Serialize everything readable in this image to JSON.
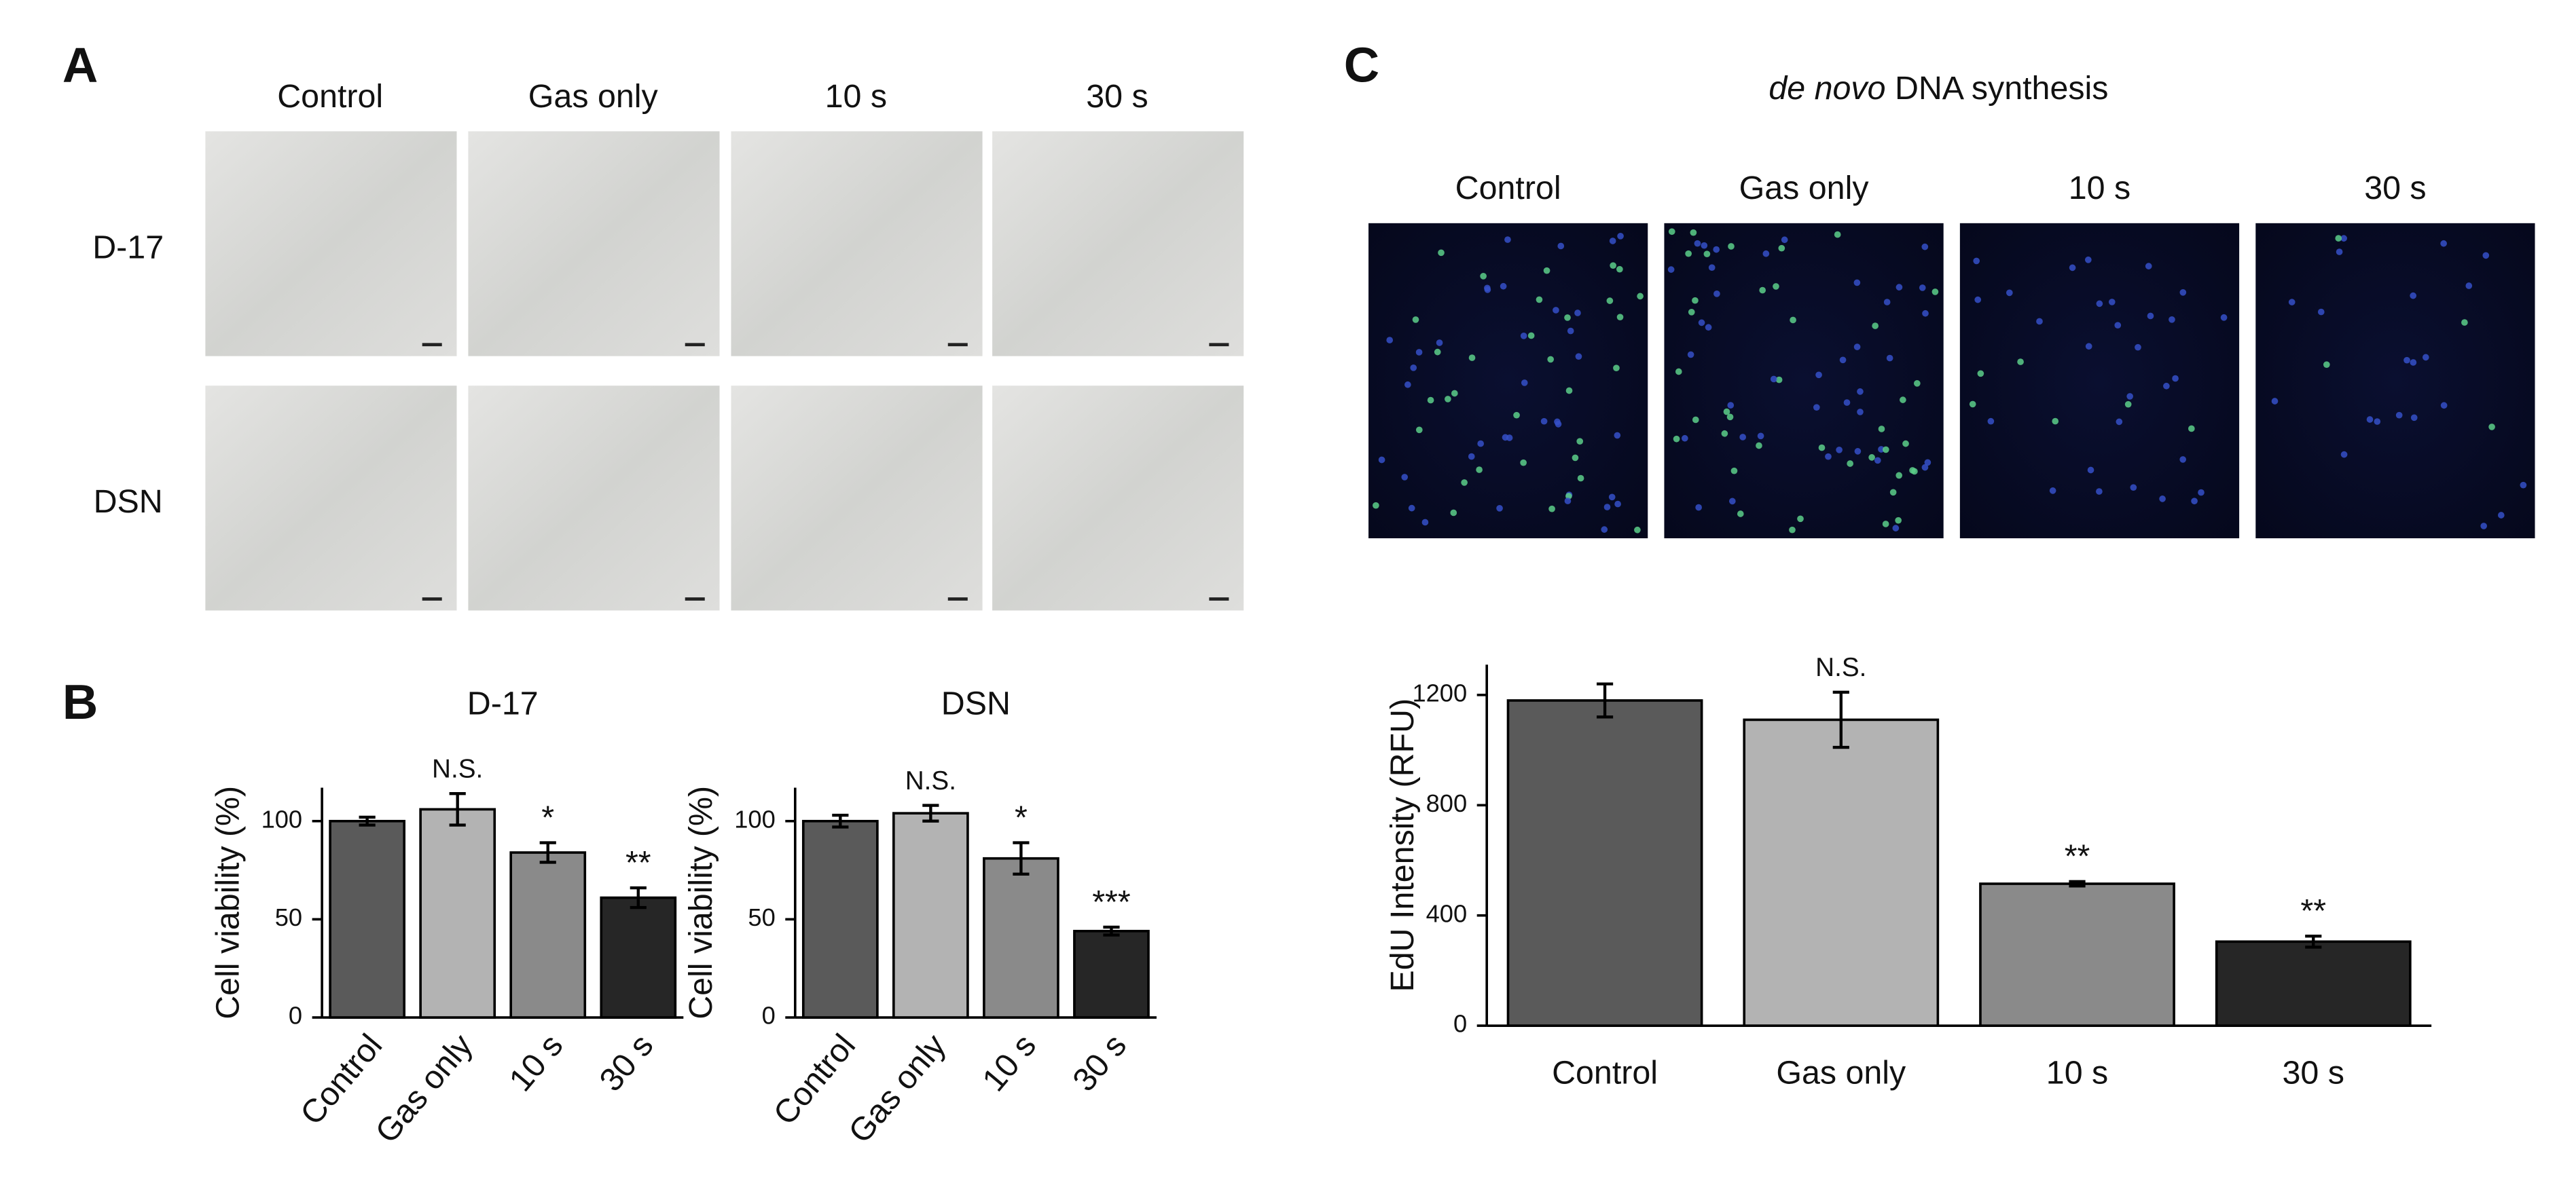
{
  "panels": {
    "a": "A",
    "b": "B",
    "c": "C"
  },
  "micrographs": {
    "columns": [
      "Control",
      "Gas only",
      "10 s",
      "30 s"
    ],
    "rows": [
      "D-17",
      "DSN"
    ]
  },
  "fluorescence": {
    "title_italic": "de novo",
    "title_rest": "DNA synthesis",
    "columns": [
      "Control",
      "Gas only",
      "10 s",
      "30 s"
    ]
  },
  "chart_data": [
    {
      "type": "bar",
      "title": "D-17",
      "ylabel": "Cell viability (%)",
      "categories": [
        "Control",
        "Gas only",
        "10 s",
        "30 s"
      ],
      "values": [
        100,
        106,
        84,
        61
      ],
      "errors": [
        2,
        8,
        5,
        5
      ],
      "annotations": [
        null,
        "N.S.",
        "*",
        "**"
      ],
      "colors": [
        "#5a5a5a",
        "#b3b3b3",
        "#8a8a8a",
        "#262626"
      ],
      "ylim": [
        0,
        117
      ],
      "yticks": [
        0,
        50,
        100
      ]
    },
    {
      "type": "bar",
      "title": "DSN",
      "ylabel": "Cell viability (%)",
      "categories": [
        "Control",
        "Gas only",
        "10 s",
        "30 s"
      ],
      "values": [
        100,
        104,
        81,
        44
      ],
      "errors": [
        3,
        4,
        8,
        2
      ],
      "annotations": [
        null,
        "N.S.",
        "*",
        "***"
      ],
      "colors": [
        "#5a5a5a",
        "#b3b3b3",
        "#8a8a8a",
        "#262626"
      ],
      "ylim": [
        0,
        117
      ],
      "yticks": [
        0,
        50,
        100
      ]
    },
    {
      "type": "bar",
      "ylabel": "EdU Intensity (RFU)",
      "categories": [
        "Control",
        "Gas only",
        "10 s",
        "30 s"
      ],
      "values": [
        1180,
        1110,
        515,
        305
      ],
      "errors": [
        60,
        100,
        8,
        20
      ],
      "annotations": [
        null,
        "N.S.",
        "**",
        "**"
      ],
      "colors": [
        "#5a5a5a",
        "#b3b3b3",
        "#8a8a8a",
        "#262626"
      ],
      "ylim": [
        0,
        1310
      ],
      "yticks": [
        0,
        400,
        800,
        1200
      ]
    }
  ]
}
